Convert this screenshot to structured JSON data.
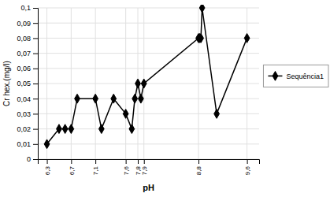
{
  "chart_data": {
    "type": "line",
    "x": [
      6.3,
      6.5,
      6.6,
      6.7,
      6.8,
      7.1,
      7.2,
      7.4,
      7.6,
      7.7,
      7.75,
      7.8,
      7.85,
      7.9,
      8.8,
      8.82,
      8.84,
      8.86,
      9.1,
      9.6
    ],
    "series": [
      {
        "name": "Sequência1",
        "color": "#000000",
        "marker": "diamond",
        "values": [
          0.01,
          0.02,
          0.02,
          0.02,
          0.04,
          0.04,
          0.02,
          0.04,
          0.03,
          0.02,
          0.04,
          0.05,
          0.04,
          0.05,
          0.08,
          0.08,
          0.08,
          0.1,
          0.03,
          0.08
        ]
      }
    ],
    "x_label": "pH",
    "y_label": "Cr hex.(mg/l)",
    "xlim": [
      6.15,
      9.8
    ],
    "xticks": [
      {
        "value": 6.3,
        "label": "6,3"
      },
      {
        "value": 6.7,
        "label": "6,7"
      },
      {
        "value": 7.1,
        "label": "7,1"
      },
      {
        "value": 7.6,
        "label": "7,6"
      },
      {
        "value": 7.8,
        "label": "7,8"
      },
      {
        "value": 7.9,
        "label": "7,9"
      },
      {
        "value": 8.8,
        "label": "8,8"
      },
      {
        "value": 9.6,
        "label": "9,6"
      }
    ],
    "ylim": [
      0,
      0.1
    ],
    "yticks": [
      0,
      {
        "value": 0.01,
        "label": "0,01"
      },
      {
        "value": 0.02,
        "label": "0,02"
      },
      {
        "value": 0.03,
        "label": "0,03"
      },
      {
        "value": 0.04,
        "label": "0,04"
      },
      {
        "value": 0.05,
        "label": "0,05"
      },
      {
        "value": 0.06,
        "label": "0,06"
      },
      {
        "value": 0.07,
        "label": "0,07"
      },
      {
        "value": 0.08,
        "label": "0,08"
      },
      {
        "value": 0.09,
        "label": "0,09"
      },
      {
        "value": 0.1,
        "label": "0,1"
      }
    ],
    "grid": true,
    "legend": "right"
  }
}
